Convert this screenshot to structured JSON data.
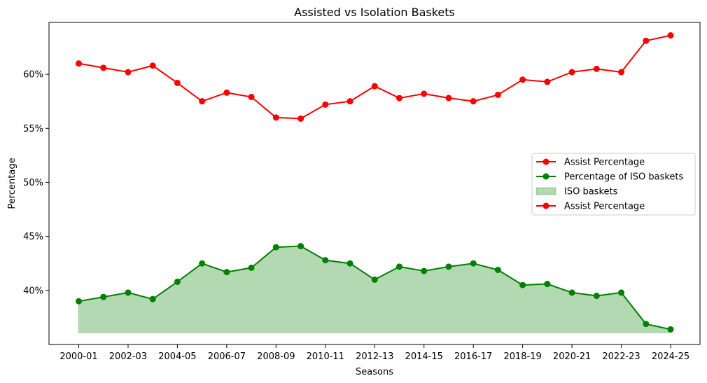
{
  "chart_data": {
    "type": "line",
    "title": "Assisted vs Isolation Baskets",
    "xlabel": "Seasons",
    "ylabel": "Percentage",
    "ylim": [
      35.0,
      64.8
    ],
    "yticks": [
      40,
      45,
      50,
      55,
      60
    ],
    "ytick_labels": [
      "40%",
      "45%",
      "50%",
      "55%",
      "60%"
    ],
    "categories": [
      "2000-01",
      "2001-02",
      "2002-03",
      "2003-04",
      "2004-05",
      "2005-06",
      "2006-07",
      "2007-08",
      "2008-09",
      "2009-10",
      "2010-11",
      "2011-12",
      "2012-13",
      "2013-14",
      "2014-15",
      "2015-16",
      "2016-17",
      "2017-18",
      "2018-19",
      "2019-20",
      "2020-21",
      "2021-22",
      "2022-23",
      "2023-24",
      "2024-25"
    ],
    "xtick_labels": [
      "2000-01",
      "2002-03",
      "2004-05",
      "2006-07",
      "2008-09",
      "2010-11",
      "2012-13",
      "2014-15",
      "2016-17",
      "2018-19",
      "2020-21",
      "2022-23",
      "2024-25"
    ],
    "fill_baseline": 36.1,
    "series": [
      {
        "name": "Assist Percentage",
        "color": "#ff0000",
        "values": [
          61.0,
          60.6,
          60.2,
          60.8,
          59.2,
          57.5,
          58.3,
          57.9,
          56.0,
          55.9,
          57.2,
          57.5,
          58.9,
          57.8,
          58.2,
          57.8,
          57.5,
          58.1,
          59.5,
          59.3,
          60.2,
          60.5,
          60.2,
          63.1,
          63.6
        ]
      },
      {
        "name": "Percentage of ISO baskets",
        "color": "#008000",
        "values": [
          39.0,
          39.4,
          39.8,
          39.2,
          40.8,
          42.5,
          41.7,
          42.1,
          44.0,
          44.1,
          42.8,
          42.5,
          41.0,
          42.2,
          41.8,
          42.2,
          42.5,
          41.9,
          40.5,
          40.6,
          39.8,
          39.5,
          39.8,
          36.9,
          36.4
        ]
      }
    ],
    "fill": {
      "name": "ISO baskets",
      "color": "#008000",
      "opacity": 0.3
    },
    "legend": {
      "placement": "center-right",
      "entries": [
        "Assist Percentage",
        "Percentage of ISO baskets",
        "ISO baskets",
        "Assist Percentage"
      ]
    },
    "grid": false
  }
}
